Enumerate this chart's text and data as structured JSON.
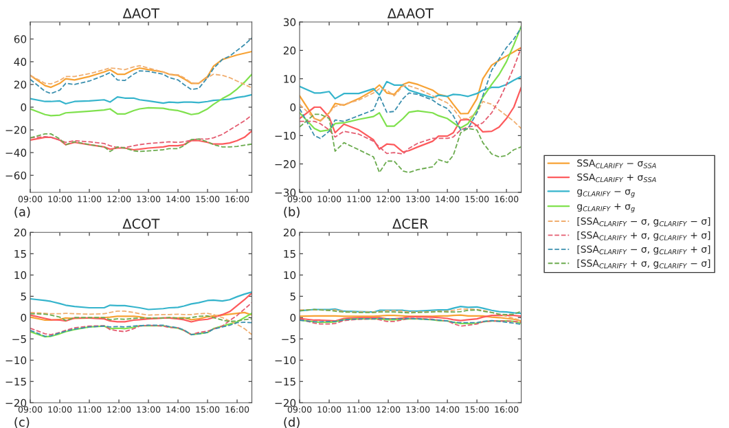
{
  "chart_data": [
    {
      "type": "line",
      "title": "ΔAOT",
      "annotations": [
        "(a)"
      ],
      "legend": false,
      "grid": false,
      "x": [
        9,
        9.5,
        9.7,
        10,
        10.2,
        10.5,
        11,
        11.5,
        11.7,
        11.95,
        12.2,
        12.5,
        12.7,
        13,
        13.5,
        13.7,
        14,
        14.2,
        14.45,
        14.7,
        15,
        15.2,
        15.5,
        15.75,
        16,
        16.25,
        16.5
      ],
      "xlim": [
        9,
        16.5
      ],
      "xticks": [
        {
          "value": 9,
          "label": "09:00"
        },
        {
          "value": 10,
          "label": "10:00"
        },
        {
          "value": 11,
          "label": "11:00"
        },
        {
          "value": 12,
          "label": "12:00"
        },
        {
          "value": 13,
          "label": "13:00"
        },
        {
          "value": 14,
          "label": "14:00"
        },
        {
          "value": 15,
          "label": "15:00"
        },
        {
          "value": 16,
          "label": "16:00"
        }
      ],
      "ylim": [
        -75,
        75
      ],
      "yticks": [
        -60,
        -40,
        -20,
        0,
        20,
        40,
        60
      ],
      "series": [
        {
          "color": "#f7a234",
          "line_style": "solid",
          "values": [
            28,
            19,
            17.5,
            21,
            25,
            24,
            27,
            31,
            33,
            29,
            29,
            33,
            34.5,
            33,
            31,
            29,
            28,
            25,
            21,
            21,
            27,
            36,
            42,
            44,
            46,
            47.5,
            49
          ]
        },
        {
          "color": "#fd5a5c",
          "line_style": "solid",
          "values": [
            -29,
            -26.5,
            -26.5,
            -29,
            -33,
            -31,
            -33,
            -35,
            -37,
            -36,
            -36,
            -37.5,
            -37,
            -36,
            -35,
            -34,
            -34,
            -33,
            -29.5,
            -29.5,
            -31,
            -32.5,
            -32.5,
            -31.5,
            -29.5,
            -26.5,
            -21
          ]
        },
        {
          "color": "#35b4cc",
          "line_style": "solid",
          "values": [
            7.5,
            5,
            5,
            5.5,
            3,
            5,
            5.5,
            6.5,
            4.5,
            9,
            8,
            8,
            6.5,
            5.5,
            3.5,
            4.5,
            4,
            4.5,
            4.5,
            4,
            5,
            6,
            6.5,
            7,
            8.5,
            9.5,
            11
          ]
        },
        {
          "color": "#7fe14d",
          "line_style": "solid",
          "values": [
            -1.5,
            -6.5,
            -7.5,
            -7,
            -5,
            -4.5,
            -3.5,
            -2.5,
            -1.5,
            -6,
            -6,
            -3,
            -1.5,
            -0.5,
            -1,
            -2,
            -3,
            -4.5,
            -6.5,
            -5.5,
            -1.5,
            2.5,
            7.5,
            11,
            16,
            22,
            29
          ]
        },
        {
          "color": "#f0ad6e",
          "line_style": "dashed",
          "values": [
            28,
            21,
            20.5,
            23.5,
            27,
            27,
            29.5,
            33,
            34.5,
            34,
            33,
            35.5,
            36.5,
            34.5,
            31,
            29,
            28.5,
            26,
            21.5,
            21,
            26,
            29,
            28,
            26,
            23,
            20,
            17
          ]
        },
        {
          "color": "#e45c70",
          "line_style": "dashed",
          "values": [
            -27,
            -26,
            -26.5,
            -29,
            -31,
            -29.5,
            -30.5,
            -32,
            -34,
            -35.5,
            -35.5,
            -34,
            -33,
            -32,
            -31,
            -30.5,
            -31,
            -30.5,
            -29,
            -28,
            -28,
            -27,
            -24,
            -20,
            -16,
            -12,
            -7
          ]
        },
        {
          "color": "#3a8fae",
          "line_style": "dashed",
          "values": [
            24.5,
            14,
            12,
            15,
            21,
            20,
            23,
            28,
            30.5,
            24,
            23.5,
            29,
            32,
            31.5,
            29,
            26,
            24,
            20,
            15.5,
            16.5,
            26,
            34,
            42,
            45,
            50,
            55,
            61
          ]
        },
        {
          "color": "#6bab4e",
          "line_style": "dashed",
          "values": [
            -27,
            -23.5,
            -23.5,
            -28,
            -33,
            -30.5,
            -33,
            -35,
            -39,
            -35,
            -36,
            -38.5,
            -39,
            -38.5,
            -37.5,
            -36.5,
            -36.5,
            -34,
            -28.5,
            -28,
            -30.5,
            -33,
            -35,
            -35,
            -34.5,
            -33.5,
            -32.5
          ]
        }
      ]
    },
    {
      "type": "line",
      "title": "ΔAAOT",
      "annotations": [
        "(b)"
      ],
      "legend": "right",
      "grid": false,
      "x": [
        9,
        9.5,
        9.7,
        10,
        10.2,
        10.5,
        11,
        11.5,
        11.7,
        11.95,
        12.2,
        12.5,
        12.7,
        13,
        13.5,
        13.7,
        14,
        14.2,
        14.45,
        14.7,
        15,
        15.2,
        15.5,
        15.75,
        16,
        16.25,
        16.5
      ],
      "xlim": [
        9,
        16.5
      ],
      "xticks": [
        {
          "value": 9,
          "label": "09:00"
        },
        {
          "value": 10,
          "label": "10:00"
        },
        {
          "value": 11,
          "label": "11:00"
        },
        {
          "value": 12,
          "label": "12:00"
        },
        {
          "value": 13,
          "label": "13:00"
        },
        {
          "value": 14,
          "label": "14:00"
        },
        {
          "value": 15,
          "label": "15:00"
        },
        {
          "value": 16,
          "label": "16:00"
        }
      ],
      "ylim": [
        -30,
        30
      ],
      "yticks": [
        -30,
        -20,
        -10,
        0,
        10,
        20,
        30
      ],
      "series": [
        {
          "name": "SSA$_{CLARIFY}$ − σ$_{SSA}$",
          "color": "#f7a234",
          "line_style": "solid",
          "values": [
            4,
            -4,
            -4.8,
            -2,
            1.3,
            0.7,
            3,
            6,
            7.8,
            5,
            4.5,
            8,
            8.8,
            8,
            6,
            4.5,
            3.8,
            1,
            -2.3,
            -2.2,
            3,
            10,
            14.8,
            16.5,
            18,
            19.5,
            21
          ]
        },
        {
          "name": "SSA$_{CLARIFY}$ + σ$_{SSA}$",
          "color": "#fd5a5c",
          "line_style": "solid",
          "values": [
            -4,
            0,
            0,
            -3.5,
            -9,
            -6,
            -8,
            -11.5,
            -14.8,
            -13,
            -13.2,
            -15.8,
            -15.3,
            -14,
            -12,
            -10.2,
            -10.2,
            -9,
            -4.5,
            -4.3,
            -6.5,
            -8.7,
            -8.5,
            -7,
            -4,
            0,
            7
          ]
        },
        {
          "name": "g$_{CLARIFY}$ − σ$_{g}$",
          "color": "#35b4cc",
          "line_style": "solid",
          "values": [
            7.3,
            5,
            5,
            5.5,
            3,
            4.8,
            4.8,
            6.5,
            4.3,
            9,
            7.8,
            7.8,
            6,
            5,
            3.3,
            4.2,
            3.8,
            4.5,
            4.3,
            3.8,
            4.8,
            6,
            7,
            7,
            8,
            9.5,
            10.8
          ]
        },
        {
          "name": "g$_{CLARIFY}$ + σ$_{g}$",
          "color": "#7fe14d",
          "line_style": "solid",
          "values": [
            -2,
            -7.5,
            -8.5,
            -8,
            -5.8,
            -5.5,
            -4.3,
            -3.3,
            -2,
            -6.7,
            -6.7,
            -4,
            -1.8,
            -1.3,
            -2,
            -3,
            -4,
            -5.5,
            -7.3,
            -5.8,
            -1,
            3.5,
            8,
            11.5,
            16,
            22,
            28.5
          ]
        },
        {
          "name": "[SSA$_{CLARIFY}$ − σ, g$_{CLARIFY}$ − σ]",
          "color": "#f0ad6e",
          "line_style": "dashed",
          "values": [
            1,
            -4,
            -5,
            -2,
            0.3,
            1,
            2.5,
            5,
            6.5,
            6,
            4,
            7.5,
            7.5,
            6.5,
            4,
            3,
            1.5,
            -0.5,
            -4,
            -4,
            -2,
            2,
            1,
            -1,
            -3,
            -5,
            -7.5
          ]
        },
        {
          "name": "[SSA$_{CLARIFY}$ + σ, g$_{CLARIFY}$ + σ]",
          "color": "#e45c70",
          "line_style": "dashed",
          "values": [
            -5,
            -5,
            -5.8,
            -8,
            -10.5,
            -8.5,
            -9.5,
            -12,
            -14,
            -16.3,
            -16,
            -16.5,
            -14.5,
            -12.7,
            -11,
            -11,
            -11,
            -10.5,
            -8,
            -7,
            -6.5,
            -5.5,
            -2,
            2.5,
            8,
            14,
            21
          ]
        },
        {
          "name": "[SSA$_{CLARIFY}$ − σ, g$_{CLARIFY}$ + σ]",
          "color": "#3a8fae",
          "line_style": "dashed",
          "values": [
            -0.5,
            -10,
            -11,
            -8.5,
            -4.5,
            -5,
            -3,
            -1,
            4,
            -1.8,
            -1.5,
            3,
            5,
            4.5,
            2.5,
            1,
            -0.5,
            -3,
            -8,
            -7.5,
            -2,
            4,
            13,
            17,
            21,
            24,
            28
          ]
        },
        {
          "name": "[SSA$_{CLARIFY}$ + σ, g$_{CLARIFY}$ − σ]",
          "color": "#6bab4e",
          "line_style": "dashed",
          "values": [
            -7,
            -2.5,
            -2.5,
            -4,
            -15.5,
            -12.5,
            -15,
            -17.5,
            -23,
            -19,
            -19,
            -22.5,
            -23,
            -22,
            -21,
            -18.5,
            -19.5,
            -17,
            -9,
            -7.5,
            -8,
            -12.5,
            -16.5,
            -17.5,
            -17,
            -15,
            -14
          ]
        }
      ]
    },
    {
      "type": "line",
      "title": "ΔCOT",
      "annotations": [
        "(c)"
      ],
      "legend": false,
      "grid": false,
      "x": [
        9,
        9.5,
        9.7,
        10,
        10.2,
        10.5,
        11,
        11.5,
        11.7,
        11.95,
        12.2,
        12.5,
        12.7,
        13,
        13.5,
        13.7,
        14,
        14.2,
        14.45,
        14.7,
        15,
        15.2,
        15.5,
        15.75,
        16,
        16.25,
        16.5
      ],
      "xlim": [
        9,
        16.5
      ],
      "xticks": [
        {
          "value": 9,
          "label": "09:00"
        },
        {
          "value": 10,
          "label": "10:00"
        },
        {
          "value": 11,
          "label": "11:00"
        },
        {
          "value": 12,
          "label": "12:00"
        },
        {
          "value": 13,
          "label": "13:00"
        },
        {
          "value": 14,
          "label": "14:00"
        },
        {
          "value": 15,
          "label": "15:00"
        },
        {
          "value": 16,
          "label": "16:00"
        }
      ],
      "ylim": [
        -20,
        20
      ],
      "yticks": [
        -20,
        -15,
        -10,
        -5,
        0,
        5,
        10,
        15,
        20
      ],
      "series": [
        {
          "color": "#f7a234",
          "line_style": "solid",
          "values": [
            0.1,
            -0.6,
            -0.6,
            -0.4,
            -0.1,
            -0.2,
            -0.1,
            0,
            0.1,
            0.3,
            0.3,
            0.3,
            0.2,
            -0.2,
            -0.1,
            -0.1,
            -0.1,
            0,
            -0.5,
            -0.3,
            0.2,
            0.4,
            0.6,
            0.8,
            1,
            1.2,
            0.6
          ]
        },
        {
          "color": "#fd5a5c",
          "line_style": "solid",
          "values": [
            0.6,
            -0.2,
            -0.5,
            -0.6,
            -0.8,
            -0.1,
            -0.1,
            -0.3,
            -0.8,
            -1,
            -1,
            -0.6,
            -0.5,
            -0.3,
            -0.1,
            -0.1,
            -0.3,
            -0.5,
            -1,
            -0.6,
            -0.4,
            0,
            0.7,
            1.4,
            2.8,
            4.2,
            5.8
          ]
        },
        {
          "color": "#35b4cc",
          "line_style": "solid",
          "values": [
            4.4,
            4,
            3.8,
            3.3,
            2.9,
            2.6,
            2.3,
            2.3,
            2.9,
            2.8,
            2.8,
            2.5,
            2.3,
            1.9,
            2.1,
            2.3,
            2.4,
            2.7,
            3.2,
            3.5,
            4,
            4.1,
            3.9,
            4.2,
            4.9,
            5.5,
            6
          ]
        },
        {
          "color": "#7fe14d",
          "line_style": "solid",
          "values": [
            -3.3,
            -4.5,
            -4.4,
            -3.8,
            -3.3,
            -2.8,
            -2.2,
            -2,
            -2.6,
            -2.5,
            -2.6,
            -2.3,
            -1.9,
            -1.9,
            -1.9,
            -2.2,
            -2.5,
            -3,
            -4,
            -3.8,
            -3.5,
            -2.6,
            -2,
            -1.5,
            -1,
            0,
            1
          ]
        },
        {
          "color": "#f0ad6e",
          "line_style": "dashed",
          "values": [
            1.2,
            1,
            0.9,
            0.9,
            1,
            0.9,
            0.8,
            0.9,
            1.2,
            1.5,
            1.5,
            1.2,
            0.9,
            0.6,
            0.7,
            0.7,
            0.8,
            0.7,
            0.7,
            0.9,
            1,
            0.7,
            0,
            -0.8,
            -1.6,
            -2.6,
            -4
          ]
        },
        {
          "color": "#e45c70",
          "line_style": "dashed",
          "values": [
            -2.5,
            -3.8,
            -4,
            -3.5,
            -3,
            -2.4,
            -2,
            -1.9,
            -2.8,
            -3.1,
            -3.3,
            -2.6,
            -2,
            -1.8,
            -2,
            -2.3,
            -2.4,
            -3,
            -4,
            -3.5,
            -3.2,
            -2.7,
            -2,
            -0.7,
            0.5,
            2,
            3.5
          ]
        },
        {
          "color": "#3a8fae",
          "line_style": "dashed",
          "values": [
            -3,
            -4.4,
            -4.3,
            -3.6,
            -3.2,
            -2.7,
            -2.2,
            -2,
            -2.2,
            -2.1,
            -2.2,
            -2,
            -1.9,
            -1.8,
            -1.8,
            -2.1,
            -2.4,
            -2.9,
            -4,
            -3.8,
            -3.5,
            -2.7,
            -2.2,
            -1.8,
            -1.2,
            -1.1,
            -1.2
          ]
        },
        {
          "color": "#6bab4e",
          "line_style": "dashed",
          "values": [
            0.9,
            0.8,
            0.6,
            0.1,
            -0.7,
            0,
            0,
            0,
            -0.5,
            -0.3,
            -0.4,
            -0.2,
            -0.1,
            -0.1,
            -0.1,
            0,
            -0.1,
            -0.2,
            0,
            0.3,
            0.4,
            0,
            -0.6,
            -0.9,
            -0.8,
            -0.5,
            -0.3
          ]
        }
      ]
    },
    {
      "type": "line",
      "title": "ΔCER",
      "annotations": [
        "(d)"
      ],
      "legend": false,
      "grid": false,
      "x": [
        9,
        9.5,
        9.7,
        10,
        10.2,
        10.5,
        11,
        11.5,
        11.7,
        11.95,
        12.2,
        12.5,
        12.7,
        13,
        13.5,
        13.7,
        14,
        14.2,
        14.45,
        14.7,
        15,
        15.2,
        15.5,
        15.75,
        16,
        16.25,
        16.5
      ],
      "xlim": [
        9,
        16.5
      ],
      "xticks": [
        {
          "value": 9,
          "label": "09:00"
        },
        {
          "value": 10,
          "label": "10:00"
        },
        {
          "value": 11,
          "label": "11:00"
        },
        {
          "value": 12,
          "label": "12:00"
        },
        {
          "value": 13,
          "label": "13:00"
        },
        {
          "value": 14,
          "label": "14:00"
        },
        {
          "value": 15,
          "label": "15:00"
        },
        {
          "value": 16,
          "label": "16:00"
        }
      ],
      "ylim": [
        -20,
        20
      ],
      "yticks": [
        -20,
        -15,
        -10,
        -5,
        0,
        5,
        10,
        15,
        20
      ],
      "series": [
        {
          "color": "#f7a234",
          "line_style": "solid",
          "values": [
            0.3,
            0.4,
            0.4,
            0.4,
            0.4,
            0.3,
            0.3,
            0.3,
            0.4,
            0.5,
            0.5,
            0.4,
            0.3,
            0.3,
            0.3,
            0.4,
            0.4,
            0.5,
            0.6,
            0.4,
            0.4,
            0.4,
            0.1,
            0,
            -0.2,
            -0.4,
            -0.8
          ]
        },
        {
          "color": "#fd5a5c",
          "line_style": "solid",
          "values": [
            -0.2,
            -0.6,
            -0.6,
            -0.7,
            -0.8,
            -0.2,
            0,
            0,
            0,
            -0.3,
            -0.3,
            -0.1,
            0.2,
            0.2,
            0.1,
            0,
            -0.2,
            -0.5,
            -0.7,
            -0.5,
            -0.3,
            0.1,
            0.5,
            0.5,
            0.5,
            0.5,
            0.3
          ]
        },
        {
          "color": "#35b4cc",
          "line_style": "solid",
          "values": [
            1.6,
            1.9,
            1.9,
            1.9,
            2,
            1.5,
            1.4,
            1.3,
            1.7,
            1.7,
            1.7,
            1.7,
            1.5,
            1.5,
            1.7,
            1.8,
            1.8,
            2.2,
            2.6,
            2.4,
            2.5,
            2.2,
            1.7,
            1.4,
            1.3,
            1.1,
            1
          ]
        },
        {
          "color": "#7fe14d",
          "line_style": "solid",
          "values": [
            -0.6,
            -1,
            -1.1,
            -1.1,
            -1,
            -0.5,
            -0.3,
            -0.3,
            -0.3,
            -0.5,
            -0.5,
            -0.4,
            -0.3,
            -0.3,
            -0.5,
            -0.7,
            -0.8,
            -1.1,
            -1.4,
            -1.4,
            -1.3,
            -1,
            -0.8,
            -0.8,
            -0.8,
            -0.9,
            -1.3
          ]
        },
        {
          "color": "#f0ad6e",
          "line_style": "dashed",
          "values": [
            1.8,
            1.8,
            1.8,
            1.7,
            1.8,
            1.4,
            1.3,
            1.3,
            1.4,
            1.6,
            1.6,
            1.5,
            1.3,
            1.3,
            1.4,
            1.5,
            1.5,
            1.7,
            2,
            2,
            1.9,
            1.7,
            1.2,
            0.8,
            0.3,
            -0.2,
            -0.7
          ]
        },
        {
          "color": "#e45c70",
          "line_style": "dashed",
          "values": [
            -0.4,
            -1.3,
            -1.5,
            -1.5,
            -1.4,
            -0.7,
            -0.4,
            -0.3,
            -0.5,
            -0.9,
            -0.9,
            -0.5,
            -0.2,
            -0.2,
            -0.4,
            -0.6,
            -0.8,
            -1.4,
            -2,
            -1.8,
            -1.5,
            -1,
            -0.8,
            -0.8,
            -0.8,
            -0.9,
            -1.1
          ]
        },
        {
          "color": "#3a8fae",
          "line_style": "dashed",
          "values": [
            -0.6,
            -1,
            -1,
            -0.9,
            -0.9,
            -0.5,
            -0.3,
            -0.3,
            -0.2,
            -0.3,
            -0.3,
            -0.3,
            -0.2,
            -0.3,
            -0.5,
            -0.6,
            -0.8,
            -1.1,
            -1.2,
            -1.2,
            -1.2,
            -0.9,
            -0.7,
            -0.9,
            -1.1,
            -1.3,
            -1.6
          ]
        },
        {
          "color": "#6bab4e",
          "line_style": "dashed",
          "values": [
            1.6,
            1.9,
            1.8,
            1.7,
            1.5,
            1.3,
            1.2,
            1.2,
            1.3,
            1.3,
            1.3,
            1.2,
            1.1,
            1.2,
            1.3,
            1.4,
            1.3,
            1.3,
            1.4,
            1.7,
            1.8,
            1.5,
            1.2,
            0.8,
            0.7,
            0.8,
            1.5
          ]
        }
      ]
    }
  ]
}
